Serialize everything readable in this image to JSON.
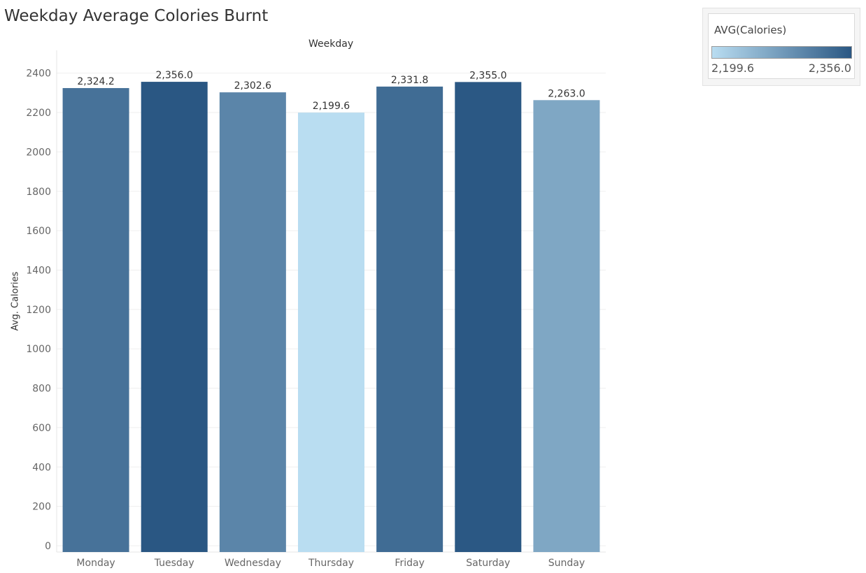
{
  "chart_data": {
    "type": "bar",
    "title": "Weekday Average Colories Burnt",
    "column_header": "Weekday",
    "ylabel": "Avg. Calories",
    "categories": [
      "Monday",
      "Tuesday",
      "Wednesday",
      "Thursday",
      "Friday",
      "Saturday",
      "Sunday"
    ],
    "values": [
      2324.2,
      2356.0,
      2302.6,
      2199.6,
      2331.8,
      2355.0,
      2263.0
    ],
    "data_labels": [
      "2,324.2",
      "2,356.0",
      "2,302.6",
      "2,199.6",
      "2,331.8",
      "2,355.0",
      "2,263.0"
    ],
    "ylim": [
      0,
      2450
    ],
    "yticks": [
      0,
      200,
      400,
      600,
      800,
      1000,
      1200,
      1400,
      1600,
      1800,
      2000,
      2200,
      2400
    ],
    "grid": true,
    "color_scale": {
      "title": "AVG(Calories)",
      "min_label": "2,199.6",
      "max_label": "2,356.0",
      "min": 2199.6,
      "max": 2356.0,
      "color_low": "#b9ddf1",
      "color_high": "#2a5783"
    },
    "legend_position": "top-right"
  }
}
